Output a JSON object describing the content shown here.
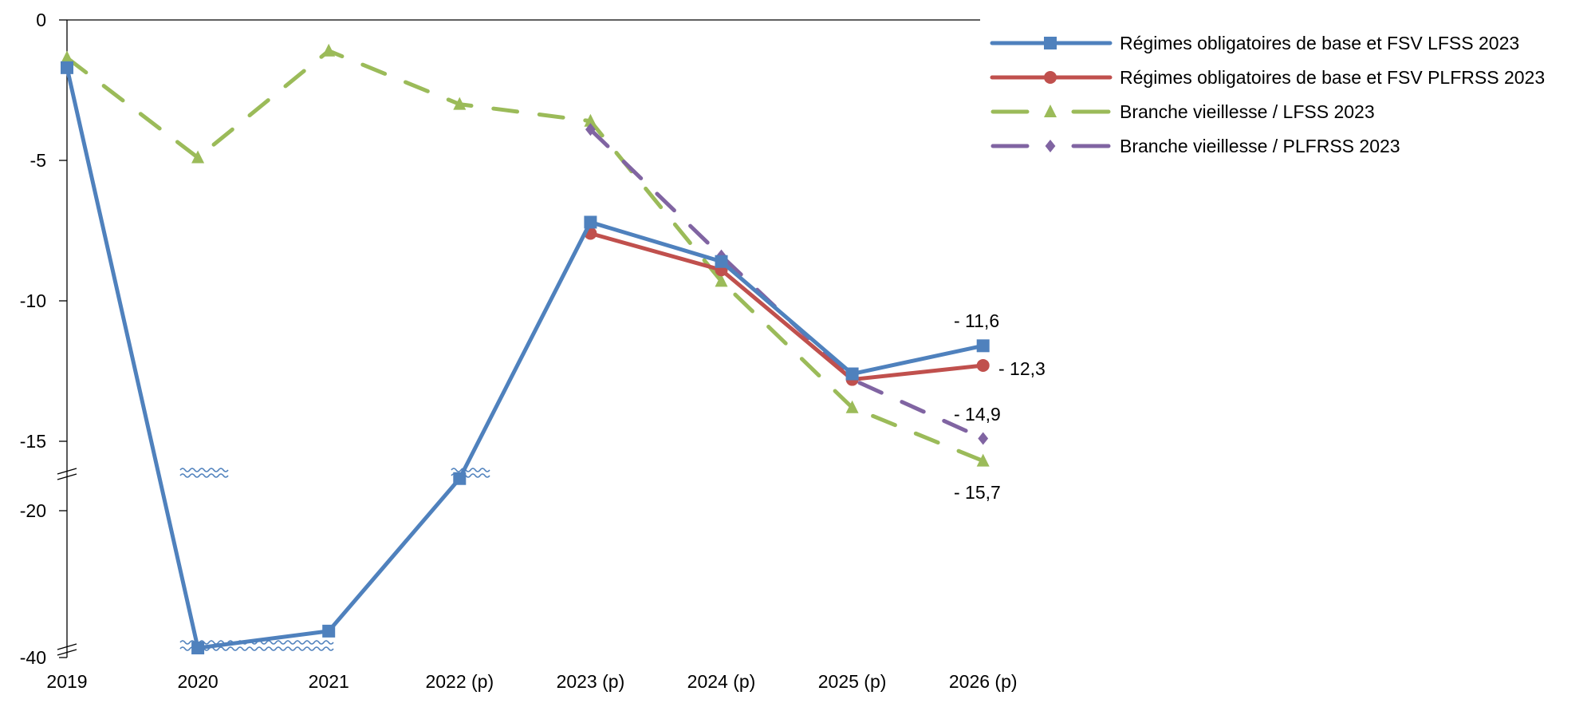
{
  "chart_data": {
    "type": "line",
    "title": "",
    "xlabel": "",
    "ylabel": "",
    "categories": [
      "2019",
      "2020",
      "2021",
      "2022 (p)",
      "2023 (p)",
      "2024 (p)",
      "2025 (p)",
      "2026 (p)"
    ],
    "y_ticks": [
      "0",
      "-5",
      "-10",
      "-15",
      "-20",
      "-40"
    ],
    "y_tick_values": [
      0,
      -5,
      -10,
      -15,
      -20,
      -40
    ],
    "ylim": [
      -40,
      0
    ],
    "axis_break": "between -15 and -20 (broken axis)",
    "grid": false,
    "legend_position": "top-right",
    "series": [
      {
        "name": "Régimes obligatoires de base et FSV LFSS 2023",
        "color": "#4F81BD",
        "marker": "square",
        "dash": false,
        "values": [
          -1.7,
          -38.7,
          -36.4,
          -16.6,
          -7.2,
          -8.6,
          -12.6,
          -11.6
        ]
      },
      {
        "name": "Régimes obligatoires de base et FSV PLFRSS 2023",
        "color": "#C0504D",
        "marker": "circle",
        "dash": false,
        "values": [
          null,
          null,
          null,
          null,
          -7.6,
          -8.9,
          -12.8,
          -12.3
        ]
      },
      {
        "name": "Branche vieillesse / LFSS 2023",
        "color": "#9BBB59",
        "marker": "triangle",
        "dash": true,
        "values": [
          -1.35,
          -4.9,
          -1.1,
          -3.0,
          -3.6,
          -9.3,
          -13.8,
          -15.7
        ]
      },
      {
        "name": "Branche vieillesse / PLFRSS 2023",
        "color": "#8064A2",
        "marker": "diamond",
        "dash": true,
        "values": [
          null,
          null,
          null,
          null,
          -3.9,
          -8.4,
          -12.8,
          -14.9
        ]
      }
    ],
    "data_labels": [
      {
        "series": 0,
        "text": "- 11,6"
      },
      {
        "series": 1,
        "text": "- 12,3"
      },
      {
        "series": 3,
        "text": "- 14,9"
      },
      {
        "series": 2,
        "text": "- 15,7"
      }
    ]
  }
}
